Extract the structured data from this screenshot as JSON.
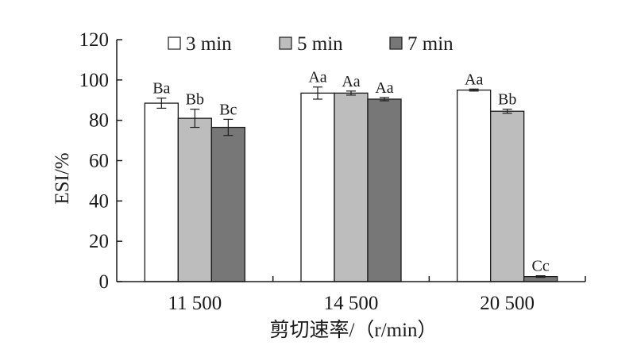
{
  "chart_data": {
    "type": "bar",
    "title": "",
    "xlabel": "剪切速率/（r/min）",
    "ylabel": "ESI/%",
    "ylim": [
      0,
      120
    ],
    "yticks": [
      0,
      20,
      40,
      60,
      80,
      100,
      120
    ],
    "categories": [
      "11 500",
      "14 500",
      "20 500"
    ],
    "legend_position": "top",
    "grid": false,
    "series": [
      {
        "name": "3 min",
        "color": "#ffffff",
        "values": [
          88.5,
          93.5,
          95.0
        ],
        "errors": [
          2.5,
          3.0,
          0.5
        ],
        "labels": [
          "Ba",
          "Aa",
          "Aa"
        ]
      },
      {
        "name": "5 min",
        "color": "#bdbdbd",
        "values": [
          81.0,
          93.5,
          84.5
        ],
        "errors": [
          4.5,
          1.0,
          1.0
        ],
        "labels": [
          "Bb",
          "Aa",
          "Bb"
        ]
      },
      {
        "name": "7 min",
        "color": "#777777",
        "values": [
          76.5,
          90.5,
          2.5
        ],
        "errors": [
          4.0,
          0.8,
          0.4
        ],
        "labels": [
          "Bc",
          "Aa",
          "Cc"
        ]
      }
    ]
  }
}
